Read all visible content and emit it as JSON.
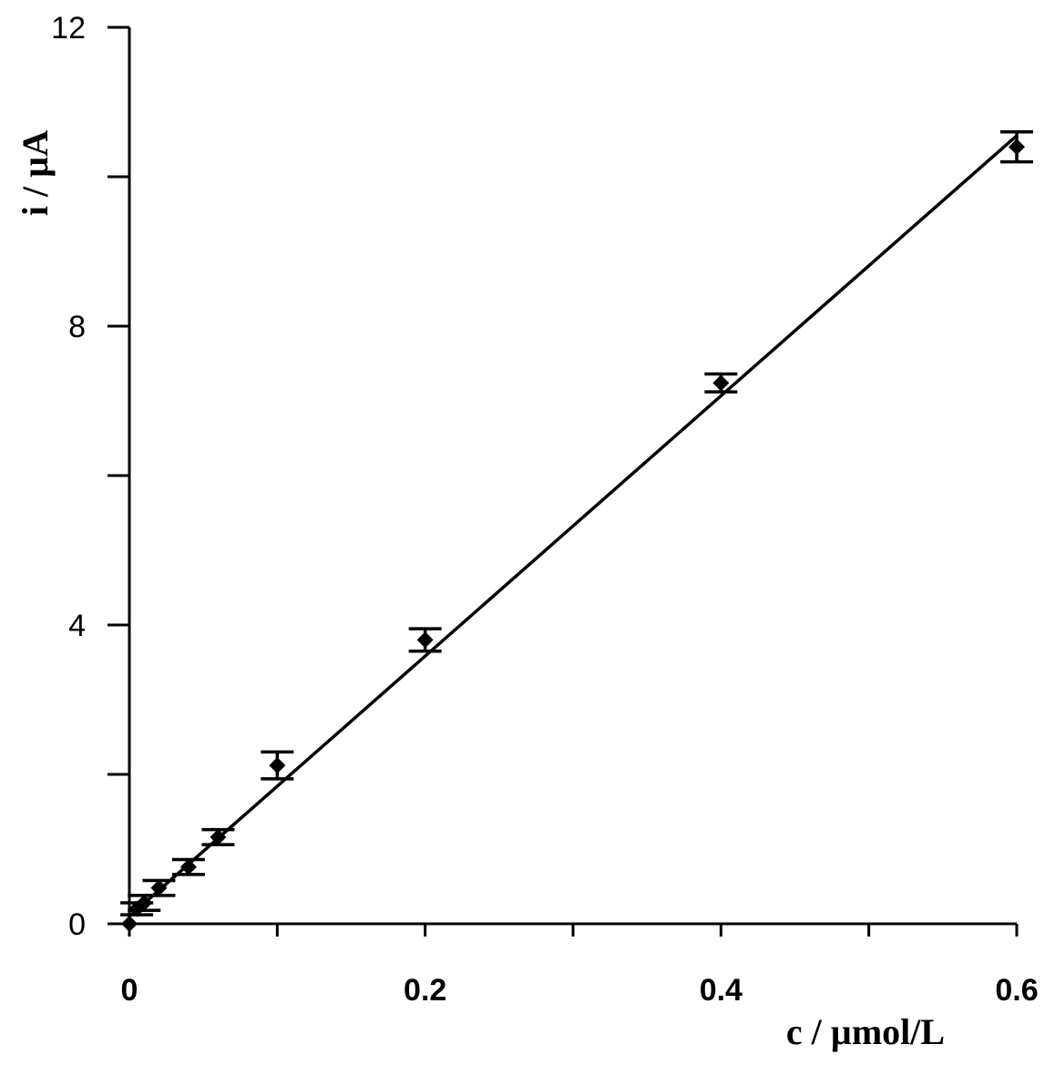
{
  "chart_data": {
    "type": "scatter",
    "title": "",
    "xlabel": "c / µmol/L",
    "ylabel": "i / µA",
    "xlim": [
      0,
      0.6
    ],
    "ylim": [
      0,
      12
    ],
    "x_ticks": [
      0,
      0.1,
      0.2,
      0.3,
      0.4,
      0.5,
      0.6
    ],
    "x_tick_labels": [
      {
        "value": 0,
        "label": "0"
      },
      {
        "value": 0.2,
        "label": "0.2"
      },
      {
        "value": 0.4,
        "label": "0.4"
      },
      {
        "value": 0.6,
        "label": "0.6"
      }
    ],
    "y_ticks": [
      0,
      2,
      4,
      6,
      8,
      10,
      12
    ],
    "y_tick_labels": [
      {
        "value": 0,
        "label": "0"
      },
      {
        "value": 4,
        "label": "4"
      },
      {
        "value": 8,
        "label": "8"
      },
      {
        "value": 12,
        "label": "12"
      }
    ],
    "grid": false,
    "legend": "none",
    "points": [
      {
        "x": 0.0,
        "y": 0.0,
        "err": 0.0
      },
      {
        "x": 0.005,
        "y": 0.2,
        "err": 0.08
      },
      {
        "x": 0.01,
        "y": 0.28,
        "err": 0.1
      },
      {
        "x": 0.02,
        "y": 0.48,
        "err": 0.1
      },
      {
        "x": 0.04,
        "y": 0.76,
        "err": 0.1
      },
      {
        "x": 0.06,
        "y": 1.16,
        "err": 0.1
      },
      {
        "x": 0.1,
        "y": 2.12,
        "err": 0.18
      },
      {
        "x": 0.2,
        "y": 3.8,
        "err": 0.15
      },
      {
        "x": 0.4,
        "y": 7.24,
        "err": 0.12
      },
      {
        "x": 0.6,
        "y": 10.4,
        "err": 0.2
      }
    ],
    "fit_line": {
      "x": [
        0.0,
        0.6
      ],
      "y": [
        0.1,
        10.55
      ]
    }
  }
}
